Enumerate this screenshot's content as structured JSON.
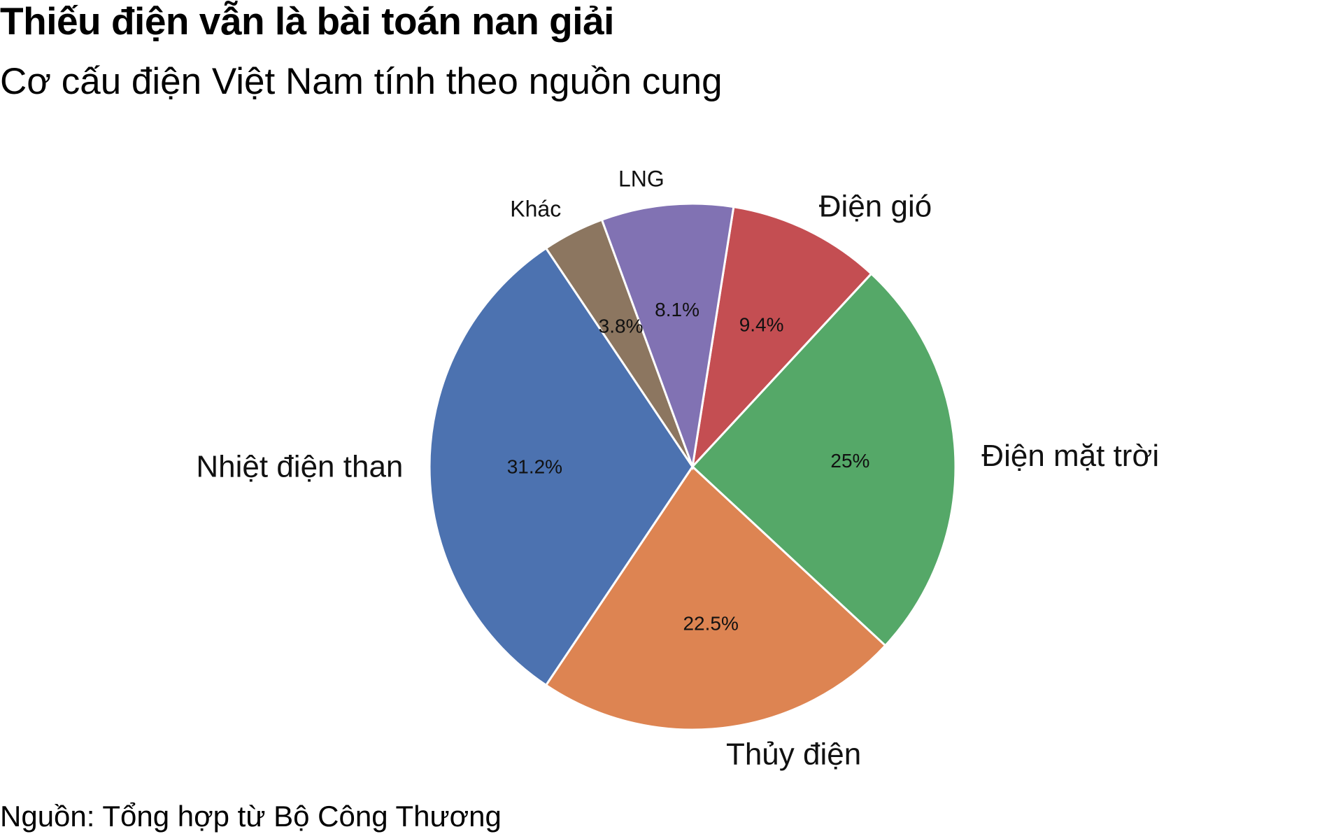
{
  "title": "Thiếu điện vẫn là bài toán nan giải",
  "subtitle": "Cơ cấu điện Việt Nam tính theo nguồn cung",
  "source": "Nguồn: Tổng hợp từ Bộ Công Thương",
  "chart_data": {
    "type": "pie",
    "start_angle_deg": 81,
    "direction": "clockwise",
    "legend": "none",
    "slices": [
      {
        "label": "Điện gió",
        "value": 9.4,
        "value_label": "9.4%",
        "color": "#c44e52"
      },
      {
        "label": "Điện mặt trời",
        "value": 25,
        "value_label": "25%",
        "color": "#55a868"
      },
      {
        "label": "Thủy điện",
        "value": 22.5,
        "value_label": "22.5%",
        "color": "#dd8452"
      },
      {
        "label": "Nhiệt điện than",
        "value": 31.2,
        "value_label": "31.2%",
        "color": "#4c72b0"
      },
      {
        "label": "Khác",
        "value": 3.8,
        "value_label": "3.8%",
        "color": "#8c7660"
      },
      {
        "label": "LNG",
        "value": 8.1,
        "value_label": "8.1%",
        "color": "#8172b3"
      }
    ]
  }
}
